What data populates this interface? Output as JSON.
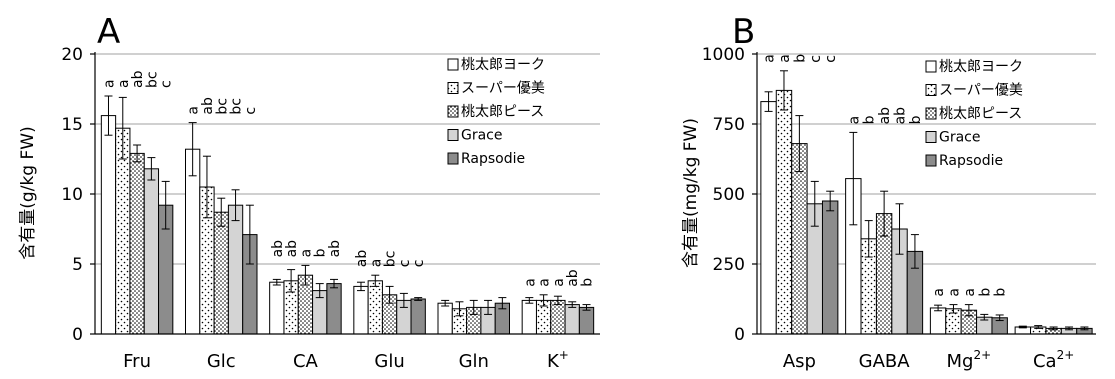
{
  "chart_data": [
    {
      "type": "bar",
      "panel": "A",
      "ylabel_main": "含有量",
      "ylabel_unit": "(g/kg FW)",
      "ylim": [
        0,
        20
      ],
      "yticks": [
        0,
        5,
        10,
        15,
        20
      ],
      "grid": true,
      "legend_position": "top-right",
      "categories": [
        {
          "text": "Fru",
          "sup": ""
        },
        {
          "text": "Glc",
          "sup": ""
        },
        {
          "text": "CA",
          "sup": ""
        },
        {
          "text": "Glu",
          "sup": ""
        },
        {
          "text": "Gln",
          "sup": ""
        },
        {
          "text": "K",
          "sup": "+"
        }
      ],
      "series": [
        {
          "name": "桃太郎ヨーク",
          "values": [
            15.6,
            13.2,
            3.7,
            3.4,
            2.2,
            2.4
          ],
          "errors": [
            1.4,
            1.9,
            0.2,
            0.3,
            0.2,
            0.2
          ],
          "letters": [
            "a",
            "a",
            "ab",
            "ab",
            "",
            "a"
          ]
        },
        {
          "name": "スーパー優美",
          "values": [
            14.7,
            10.5,
            3.8,
            3.8,
            1.8,
            2.4
          ],
          "errors": [
            2.2,
            2.2,
            0.8,
            0.4,
            0.5,
            0.4
          ],
          "letters": [
            "a",
            "ab",
            "ab",
            "a",
            "",
            "a"
          ]
        },
        {
          "name": "桃太郎ピース",
          "values": [
            12.9,
            8.7,
            4.2,
            2.8,
            1.9,
            2.4
          ],
          "errors": [
            0.6,
            1.0,
            0.7,
            0.6,
            0.5,
            0.3
          ],
          "letters": [
            "ab",
            "bc",
            "a",
            "bc",
            "",
            "a"
          ]
        },
        {
          "name": "Grace",
          "values": [
            11.8,
            9.2,
            3.1,
            2.4,
            1.9,
            2.1
          ],
          "errors": [
            0.8,
            1.1,
            0.5,
            0.5,
            0.5,
            0.2
          ],
          "letters": [
            "bc",
            "bc",
            "b",
            "c",
            "",
            "ab"
          ]
        },
        {
          "name": "Rapsodie",
          "values": [
            9.2,
            7.1,
            3.6,
            2.5,
            2.2,
            1.9
          ],
          "errors": [
            1.7,
            2.1,
            0.3,
            0.1,
            0.4,
            0.2
          ],
          "letters": [
            "c",
            "c",
            "ab",
            "c",
            "",
            "b"
          ]
        }
      ]
    },
    {
      "type": "bar",
      "panel": "B",
      "ylabel_main": "含有量",
      "ylabel_unit": "(mg/kg FW)",
      "ylim": [
        0,
        1000
      ],
      "yticks": [
        0,
        250,
        500,
        750,
        1000
      ],
      "grid": true,
      "legend_position": "top-right",
      "categories": [
        {
          "text": "Asp",
          "sup": ""
        },
        {
          "text": "GABA",
          "sup": ""
        },
        {
          "text": "Mg",
          "sup": "2+"
        },
        {
          "text": "Ca",
          "sup": "2+"
        }
      ],
      "series": [
        {
          "name": "桃太郎ヨーク",
          "values": [
            830,
            555,
            93,
            25
          ],
          "errors": [
            35,
            165,
            10,
            3
          ],
          "letters": [
            "a",
            "a",
            "a",
            ""
          ]
        },
        {
          "name": "スーパー優美",
          "values": [
            870,
            340,
            90,
            25
          ],
          "errors": [
            70,
            65,
            15,
            5
          ],
          "letters": [
            "a",
            "b",
            "a",
            ""
          ]
        },
        {
          "name": "桃太郎ピース",
          "values": [
            680,
            430,
            85,
            20
          ],
          "errors": [
            100,
            80,
            20,
            5
          ],
          "letters": [
            "b",
            "ab",
            "a",
            ""
          ]
        },
        {
          "name": "Grace",
          "values": [
            465,
            375,
            60,
            20
          ],
          "errors": [
            80,
            90,
            10,
            5
          ],
          "letters": [
            "c",
            "ab",
            "b",
            ""
          ]
        },
        {
          "name": "Rapsodie",
          "values": [
            475,
            295,
            58,
            20
          ],
          "errors": [
            35,
            60,
            10,
            5
          ],
          "letters": [
            "c",
            "b",
            "b",
            ""
          ]
        }
      ]
    }
  ],
  "series_styles": [
    {
      "fill": "#ffffff",
      "pattern": "none"
    },
    {
      "fill": "#ffffff",
      "pattern": "dots-sparse"
    },
    {
      "fill": "#ffffff",
      "pattern": "dots-dense"
    },
    {
      "fill": "#d4d4d4",
      "pattern": "none"
    },
    {
      "fill": "#8c8c8c",
      "pattern": "none"
    }
  ],
  "colors": {
    "grid": "#a0a0a0",
    "axis": "#000000",
    "bar_stroke": "#000000"
  }
}
